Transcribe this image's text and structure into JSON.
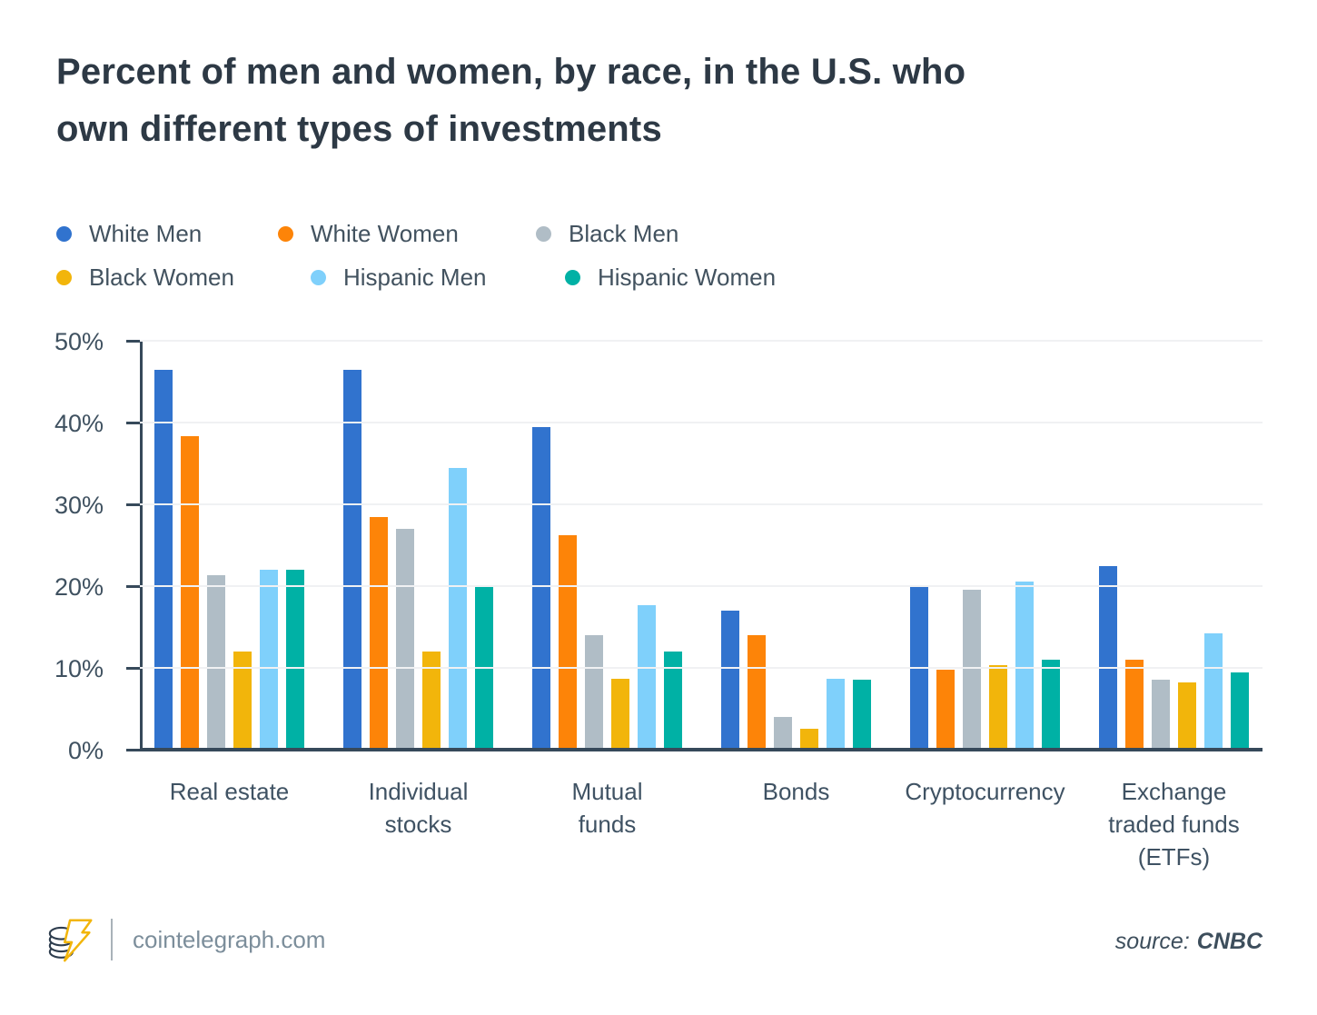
{
  "title": {
    "line1": "Percent of men and women, by race, in the U.S. who",
    "line2": "own different types of investments"
  },
  "legend": {
    "items": [
      {
        "label": "White Men",
        "color": "#3173ce"
      },
      {
        "label": "White Women",
        "color": "#fd8408"
      },
      {
        "label": "Black Men",
        "color": "#b0bdc6"
      },
      {
        "label": "Black Women",
        "color": "#f2b50b"
      },
      {
        "label": "Hispanic Men",
        "color": "#7fd0fb"
      },
      {
        "label": "Hispanic Women",
        "color": "#00b1a5"
      }
    ]
  },
  "chart_data": {
    "type": "bar",
    "title": "Percent of men and women, by race, in the U.S. who own different types of investments",
    "categories": [
      "Real estate",
      "Individual\nstocks",
      "Mutual\nfunds",
      "Bonds",
      "Cryptocurrency",
      "Exchange\ntraded funds\n(ETFs)"
    ],
    "series": [
      {
        "name": "White Men",
        "color": "#3173ce",
        "values": [
          46.5,
          46.5,
          39.5,
          17,
          20,
          22.4
        ]
      },
      {
        "name": "White Women",
        "color": "#fd8408",
        "values": [
          38.3,
          28.5,
          26.2,
          14,
          9.8,
          11
        ]
      },
      {
        "name": "Black Men",
        "color": "#b0bdc6",
        "values": [
          21.3,
          27,
          14,
          4,
          19.6,
          8.6
        ]
      },
      {
        "name": "Black Women",
        "color": "#f2b50b",
        "values": [
          12,
          12,
          8.7,
          2.6,
          10.3,
          8.2
        ]
      },
      {
        "name": "Hispanic Men",
        "color": "#7fd0fb",
        "values": [
          22,
          34.5,
          17.7,
          8.7,
          20.6,
          14.2
        ]
      },
      {
        "name": "Hispanic Women",
        "color": "#00b1a5",
        "values": [
          22,
          20,
          12,
          8.6,
          11,
          9.4
        ]
      }
    ],
    "xlabel": "",
    "ylabel": "",
    "ylim": [
      0,
      50
    ],
    "y_ticks": [
      "50%",
      "40%",
      "30%",
      "20%",
      "10%",
      "0%"
    ],
    "grid": true,
    "legend_position": "top-left"
  },
  "footer": {
    "brand": "cointelegraph.com",
    "source_label": "source:",
    "source_value": "CNBC"
  }
}
